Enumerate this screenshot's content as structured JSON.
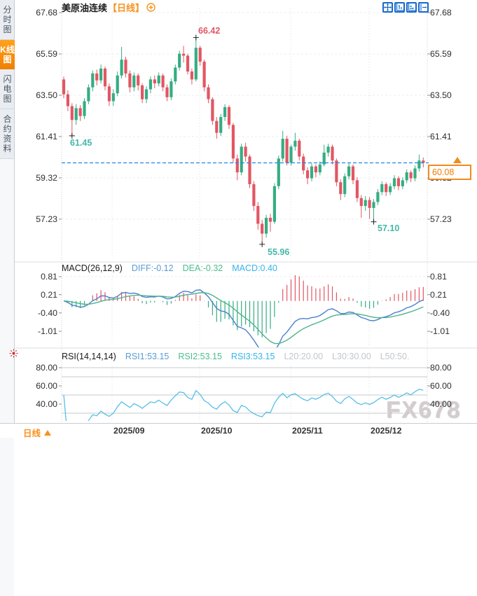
{
  "sidebar": {
    "items": [
      {
        "label": "分时图",
        "selected": false
      },
      {
        "label": "K线图",
        "selected": true
      },
      {
        "label": "闪电图",
        "selected": false
      },
      {
        "label": "合约资料",
        "selected": false
      }
    ]
  },
  "header": {
    "title": "美原油连续",
    "period_tag": "【日线】"
  },
  "toolbar": {
    "icons": [
      "move-icon",
      "fit-vertical-axis-icon",
      "fit-horizontal-axis-icon",
      "scroll-right-icon"
    ]
  },
  "price_axis": {
    "ticks": [
      "67.68",
      "65.59",
      "63.50",
      "61.41",
      "59.32",
      "57.23"
    ]
  },
  "current_price": {
    "value": "60.08"
  },
  "annotations": {
    "high": "66.42",
    "low_left": "61.45",
    "low_bottom": "55.96",
    "low_right": "57.10"
  },
  "macd": {
    "title": "MACD(26,12,9)",
    "diff_label": "DIFF:-0.12",
    "dea_label": "DEA:-0.32",
    "macd_label": "MACD:0.40",
    "ticks": [
      "0.81",
      "0.21",
      "-0.40",
      "-1.01"
    ]
  },
  "rsi": {
    "title": "RSI(14,14,14)",
    "rsi1_label": "RSI1:53.15",
    "rsi2_label": "RSI2:53.15",
    "rsi3_label": "RSI3:53.15",
    "l20_label": "L20:20.00",
    "l30_label": "L30:30.00",
    "l50_label": "L50:50.",
    "ticks": [
      "80.00",
      "60.00",
      "40.00"
    ]
  },
  "time_axis": {
    "period_label": "日线",
    "labels": [
      "2025/09",
      "2025/10",
      "2025/11",
      "2025/12"
    ]
  },
  "watermark": "FX678",
  "colors": {
    "candle_up": "#35ad82",
    "candle_down": "#e25663",
    "accent_orange": "#f7931e",
    "current_price_blue": "#1e88e5",
    "diff_blue": "#4a7fd0",
    "dea_green": "#4db389",
    "diff_text": "#5b9bd5",
    "dea_text": "#4dbd8e",
    "macd_text": "#36b4ea",
    "gray_text": "#c3c7cb",
    "rsi_line": "#55bfe8",
    "toolbar_blue": "#1669c9"
  },
  "chart_data": {
    "type": "candlestick",
    "symbol": "美原油连续",
    "period": "日线",
    "title": "美原油连续【日线】",
    "price_ticks": [
      67.68,
      65.59,
      63.5,
      61.41,
      59.32,
      57.23
    ],
    "months": [
      "2025/09",
      "2025/10",
      "2025/11",
      "2025/12"
    ],
    "current_price": 60.08,
    "marked_high": 66.42,
    "marked_lows": [
      61.45,
      55.96,
      57.1
    ],
    "macd_params": [
      26,
      12,
      9
    ],
    "macd_values": {
      "diff": -0.12,
      "dea": -0.32,
      "macd": 0.4
    },
    "macd_ticks": [
      0.81,
      0.21,
      -0.4,
      -1.01
    ],
    "rsi_params": [
      14,
      14,
      14
    ],
    "rsi_values": {
      "rsi1": 53.15,
      "rsi2": 53.15,
      "rsi3": 53.15
    },
    "rsi_ticks": [
      80,
      60,
      40
    ],
    "rsi_levels": [
      80,
      70,
      50,
      30
    ],
    "candles": [
      [
        64.3,
        64.45,
        63.35,
        63.55
      ],
      [
        63.55,
        63.75,
        62.7,
        62.95
      ],
      [
        62.95,
        63.1,
        61.45,
        62.25
      ],
      [
        62.25,
        63.05,
        62.0,
        62.85
      ],
      [
        62.85,
        63.0,
        62.2,
        62.45
      ],
      [
        62.45,
        63.35,
        62.3,
        63.2
      ],
      [
        63.2,
        64.05,
        63.05,
        63.9
      ],
      [
        63.9,
        64.75,
        63.7,
        64.6
      ],
      [
        64.6,
        64.8,
        64.0,
        64.25
      ],
      [
        64.25,
        65.05,
        64.1,
        64.85
      ],
      [
        64.85,
        64.95,
        63.75,
        63.95
      ],
      [
        63.95,
        64.1,
        62.95,
        63.2
      ],
      [
        63.2,
        63.8,
        62.95,
        63.6
      ],
      [
        63.6,
        64.7,
        63.45,
        64.5
      ],
      [
        64.5,
        65.95,
        64.35,
        65.3
      ],
      [
        65.3,
        65.45,
        64.4,
        64.6
      ],
      [
        64.6,
        64.75,
        63.65,
        63.9
      ],
      [
        63.9,
        64.65,
        63.7,
        64.5
      ],
      [
        64.5,
        64.6,
        63.75,
        64.0
      ],
      [
        64.0,
        64.1,
        63.1,
        63.3
      ],
      [
        63.3,
        63.95,
        63.1,
        63.8
      ],
      [
        63.8,
        64.45,
        63.6,
        64.3
      ],
      [
        64.3,
        64.5,
        63.85,
        64.1
      ],
      [
        64.1,
        64.65,
        63.95,
        64.5
      ],
      [
        64.5,
        64.6,
        63.7,
        63.9
      ],
      [
        63.9,
        64.05,
        63.2,
        63.4
      ],
      [
        63.4,
        64.35,
        63.25,
        64.2
      ],
      [
        64.2,
        65.05,
        64.05,
        64.9
      ],
      [
        64.9,
        65.75,
        64.75,
        65.6
      ],
      [
        65.6,
        66.0,
        65.15,
        65.5
      ],
      [
        65.5,
        65.6,
        64.55,
        64.7
      ],
      [
        64.7,
        64.85,
        64.05,
        64.3
      ],
      [
        64.3,
        66.42,
        64.2,
        65.9
      ],
      [
        65.9,
        66.0,
        65.0,
        65.2
      ],
      [
        65.2,
        65.3,
        63.7,
        63.9
      ],
      [
        63.9,
        64.05,
        63.1,
        63.3
      ],
      [
        63.3,
        63.4,
        62.0,
        62.2
      ],
      [
        62.2,
        62.4,
        61.3,
        61.6
      ],
      [
        61.6,
        62.55,
        61.45,
        62.4
      ],
      [
        62.4,
        63.05,
        62.2,
        62.9
      ],
      [
        62.9,
        63.0,
        61.8,
        62.0
      ],
      [
        62.0,
        62.1,
        60.1,
        60.3
      ],
      [
        60.3,
        60.5,
        59.2,
        59.6
      ],
      [
        59.6,
        61.05,
        59.45,
        60.9
      ],
      [
        60.9,
        61.1,
        60.15,
        60.4
      ],
      [
        60.4,
        60.5,
        58.8,
        59.0
      ],
      [
        59.0,
        59.15,
        57.65,
        57.9
      ],
      [
        57.9,
        58.1,
        56.7,
        57.0
      ],
      [
        57.0,
        57.2,
        55.96,
        56.5
      ],
      [
        56.5,
        57.45,
        56.3,
        57.3
      ],
      [
        57.3,
        57.5,
        56.6,
        57.1
      ],
      [
        57.1,
        59.05,
        57.0,
        58.9
      ],
      [
        58.9,
        60.45,
        58.75,
        60.3
      ],
      [
        60.3,
        61.7,
        60.15,
        61.3
      ],
      [
        61.3,
        61.45,
        59.95,
        60.1
      ],
      [
        60.1,
        61.0,
        59.95,
        60.9
      ],
      [
        60.9,
        61.6,
        60.7,
        61.2
      ],
      [
        61.2,
        61.3,
        60.2,
        60.4
      ],
      [
        60.4,
        60.55,
        59.5,
        59.7
      ],
      [
        59.7,
        59.85,
        59.0,
        59.3
      ],
      [
        59.3,
        60.05,
        59.15,
        59.9
      ],
      [
        59.9,
        60.0,
        59.35,
        59.6
      ],
      [
        59.6,
        60.15,
        59.45,
        60.0
      ],
      [
        60.0,
        61.0,
        59.9,
        60.6
      ],
      [
        60.6,
        61.05,
        60.4,
        60.9
      ],
      [
        60.9,
        61.0,
        60.0,
        60.2
      ],
      [
        60.2,
        60.3,
        58.9,
        59.1
      ],
      [
        59.1,
        59.25,
        58.2,
        58.5
      ],
      [
        58.5,
        59.55,
        58.35,
        59.4
      ],
      [
        59.4,
        60.05,
        59.25,
        59.9
      ],
      [
        59.9,
        60.0,
        59.0,
        59.2
      ],
      [
        59.2,
        59.35,
        58.1,
        58.3
      ],
      [
        58.3,
        58.45,
        57.3,
        57.9
      ],
      [
        57.9,
        58.4,
        57.65,
        58.2
      ],
      [
        58.2,
        58.35,
        57.25,
        57.8
      ],
      [
        57.8,
        58.25,
        57.1,
        58.1
      ],
      [
        58.1,
        58.75,
        57.95,
        58.6
      ],
      [
        58.6,
        59.15,
        58.45,
        59.0
      ],
      [
        59.0,
        59.1,
        58.4,
        58.6
      ],
      [
        58.6,
        59.05,
        58.45,
        58.9
      ],
      [
        58.9,
        59.45,
        58.75,
        59.3
      ],
      [
        59.3,
        59.4,
        58.7,
        58.9
      ],
      [
        58.9,
        59.35,
        58.75,
        59.2
      ],
      [
        59.2,
        59.75,
        59.05,
        59.6
      ],
      [
        59.6,
        59.7,
        59.1,
        59.3
      ],
      [
        59.3,
        59.95,
        59.15,
        59.8
      ],
      [
        59.8,
        60.5,
        59.65,
        60.2
      ],
      [
        60.2,
        60.35,
        59.85,
        60.08
      ]
    ]
  }
}
